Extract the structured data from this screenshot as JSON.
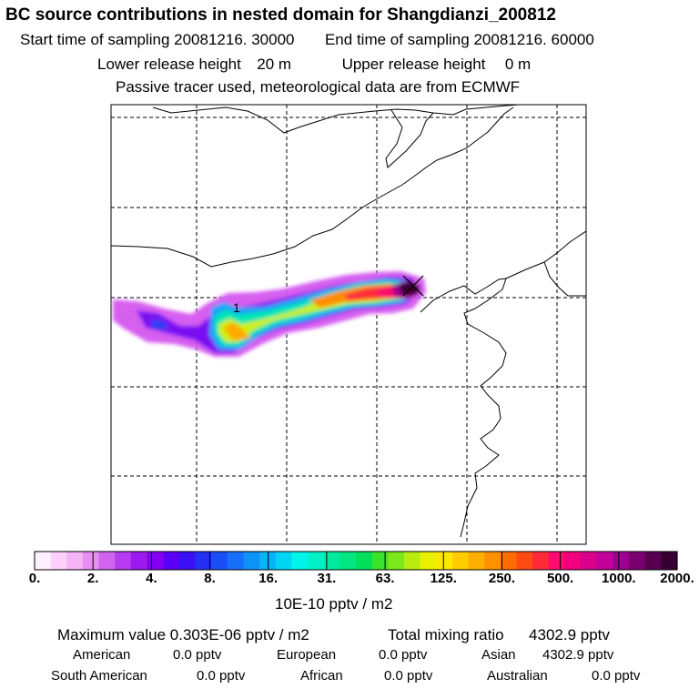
{
  "header": {
    "title": "BC  source contributions in nested domain for Shangdianzi_200812",
    "start_label": "Start time of sampling",
    "start_value": "20081216. 30000",
    "end_label": "End time of sampling",
    "end_value": "20081216. 60000",
    "lower_label": "Lower release height",
    "lower_value": "20 m",
    "upper_label": "Upper release height",
    "upper_value": "0 m",
    "note": "Passive tracer used, meteorological data are from ECMWF"
  },
  "map": {
    "marker_label": "1",
    "receptor_symbol": "×"
  },
  "colorbar": {
    "ticks": [
      "0.",
      "2.",
      "4.",
      "8.",
      "16.",
      "31.",
      "63.",
      "125.",
      "250.",
      "500.",
      "1000.",
      "2000."
    ],
    "colors": [
      "#fff0ff",
      "#ffd0fb",
      "#f5b4f5",
      "#e78ff2",
      "#cf65ee",
      "#b53cf0",
      "#9c19ef",
      "#8300f2",
      "#5c00f5",
      "#3a10f5",
      "#2431f5",
      "#1a4ff7",
      "#1570f7",
      "#0f92f8",
      "#08b3f6",
      "#00d5f6",
      "#00f5ea",
      "#00f0c8",
      "#00eba2",
      "#00e680",
      "#00e05a",
      "#3ce32c",
      "#7ae81a",
      "#b8ec10",
      "#e8f000",
      "#ffe600",
      "#ffcc00",
      "#ffaf00",
      "#ff9000",
      "#ff6d00",
      "#ff4a14",
      "#ff2a3a",
      "#ff0a6e",
      "#f0007e",
      "#d8008c",
      "#c00098",
      "#a00090",
      "#7a0070",
      "#58004f",
      "#380032"
    ],
    "unit": "10E-10 pptv / m2"
  },
  "stats": {
    "max_label": "Maximum value",
    "max_value": "0.303E-06 pptv / m2",
    "total_label": "Total mixing ratio",
    "total_value": "4302.9 pptv",
    "regions": [
      {
        "name": "American",
        "value": "0.0 pptv"
      },
      {
        "name": "European",
        "value": "0.0 pptv"
      },
      {
        "name": "Asian",
        "value": "4302.9 pptv"
      },
      {
        "name": "South American",
        "value": "0.0 pptv"
      },
      {
        "name": "African",
        "value": "0.0 pptv"
      },
      {
        "name": "Australian",
        "value": "0.0 pptv"
      }
    ]
  }
}
